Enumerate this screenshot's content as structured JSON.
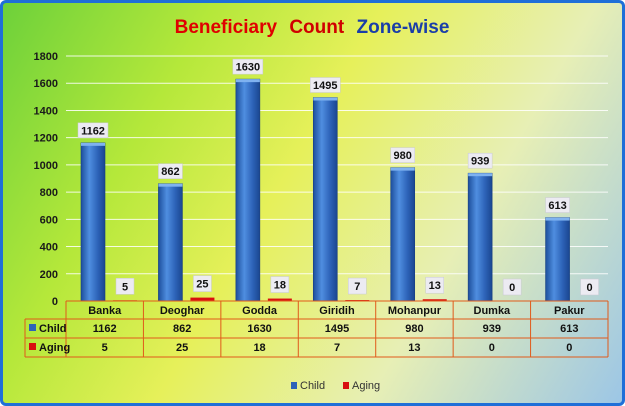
{
  "chart_data": {
    "type": "bar",
    "title_parts": [
      "Beneficiary",
      "Count",
      "Zone-wise"
    ],
    "categories": [
      "Banka",
      "Deoghar",
      "Godda",
      "Giridih",
      "Mohanpur",
      "Dumka",
      "Pakur"
    ],
    "series": [
      {
        "name": "Child",
        "values": [
          1162,
          862,
          1630,
          1495,
          980,
          939,
          613
        ],
        "color": "#2d63b8"
      },
      {
        "name": "Aging",
        "values": [
          5,
          25,
          18,
          7,
          13,
          0,
          0
        ],
        "color": "#d80f0f"
      }
    ],
    "ylim": [
      0,
      1800
    ],
    "yticks": [
      0,
      200,
      400,
      600,
      800,
      1000,
      1200,
      1400,
      1600,
      1800
    ],
    "grid": true,
    "legend_position": "bottom",
    "data_table": true
  },
  "colors": {
    "title_part1": "#e00000",
    "title_part2": "#d00000",
    "title_part3": "#1a3ea8",
    "grid": "#ffffff",
    "table_border": "#e05a1a",
    "frame_border": "#1f6fd8"
  }
}
